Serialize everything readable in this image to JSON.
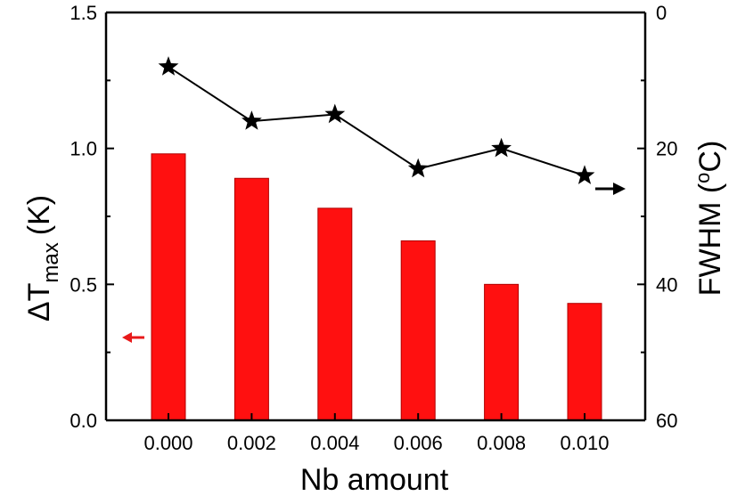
{
  "chart_data": {
    "type": "bar",
    "categories": [
      "0.000",
      "0.002",
      "0.004",
      "0.006",
      "0.008",
      "0.010"
    ],
    "xlabel": "Nb amount",
    "ylabel": {
      "delta": "ΔT",
      "subscript": "max",
      "unit": "(K)"
    },
    "y2label": {
      "prefix": "FWHM (",
      "superscript": "o",
      "suffix": "C)"
    },
    "ylim": [
      0,
      1.5
    ],
    "y2lim": [
      0,
      60
    ],
    "y2_inverted": true,
    "yticks": [
      "0.0",
      "0.5",
      "1.0",
      "1.5"
    ],
    "y2ticks": [
      "0",
      "20",
      "40",
      "60"
    ],
    "series": [
      {
        "axis": "left",
        "type": "bar",
        "color": "#ff1010",
        "values": [
          0.98,
          0.89,
          0.78,
          0.66,
          0.5,
          0.43
        ]
      },
      {
        "axis": "right",
        "type": "line",
        "marker": "star",
        "color": "#000000",
        "values": [
          8,
          16,
          15,
          23,
          20,
          24
        ]
      }
    ],
    "axis_indicators": [
      {
        "points_to": "left",
        "color": "#e8191a"
      },
      {
        "points_to": "right",
        "color": "#000000"
      }
    ],
    "grid": false,
    "legend": "none"
  }
}
